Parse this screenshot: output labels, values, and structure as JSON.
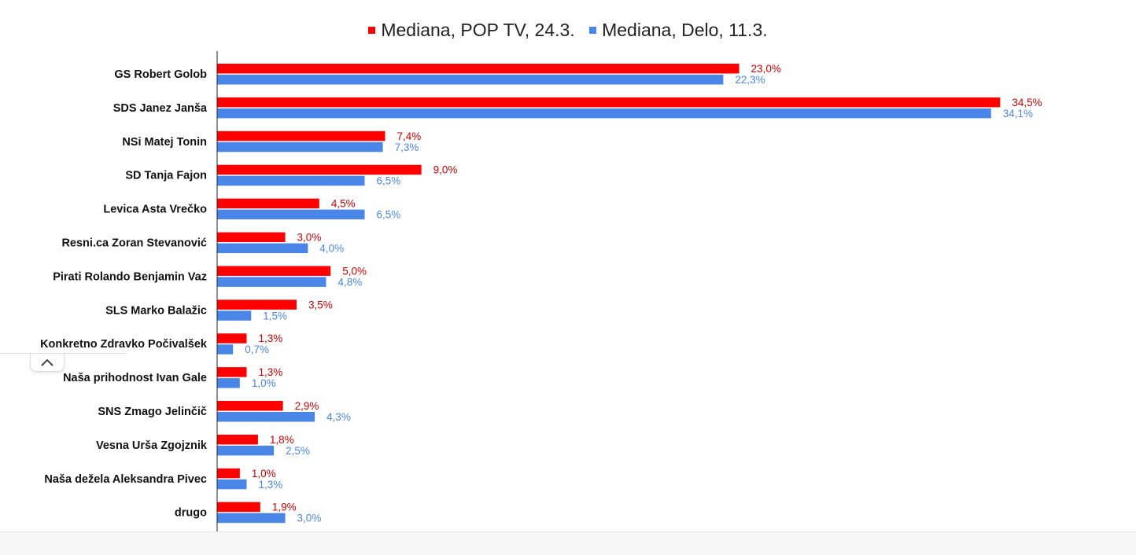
{
  "legend": [
    {
      "label": "Mediana, POP TV, 24.3.",
      "color": "#ff0000"
    },
    {
      "label": "Mediana, Delo, 11.3.",
      "color": "#4a86e8"
    }
  ],
  "chart_data": {
    "type": "bar",
    "orientation": "horizontal",
    "categories": [
      "GS Robert Golob",
      "SDS Janez Janša",
      "NSi Matej Tonin",
      "SD Tanja Fajon",
      "Levica  Asta Vrečko",
      "Resni.ca Zoran Stevanović",
      "Pirati Rolando Benjamin Vaz",
      "SLS Marko Balažic",
      "Konkretno Zdravko Počivalšek",
      "Naša prihodnost Ivan Gale",
      "SNS Zmago Jelinčič",
      "Vesna Urša Zgojznik",
      "Naša dežela Aleksandra Pivec",
      "drugo"
    ],
    "series": [
      {
        "name": "Mediana, POP TV, 24.3.",
        "color": "#ff0000",
        "label_color": "#cc0000",
        "values": [
          23.0,
          34.5,
          7.4,
          9.0,
          4.5,
          3.0,
          5.0,
          3.5,
          1.3,
          1.3,
          2.9,
          1.8,
          1.0,
          1.9
        ],
        "labels": [
          "23,0%",
          "34,5%",
          "7,4%",
          "9,0%",
          "4,5%",
          "3,0%",
          "5,0%",
          "3,5%",
          "1,3%",
          "1,3%",
          "2,9%",
          "1,8%",
          "1,0%",
          "1,9%"
        ]
      },
      {
        "name": "Mediana, Delo, 11.3.",
        "color": "#4a86e8",
        "label_color": "#4a86e8",
        "values": [
          22.3,
          34.1,
          7.3,
          6.5,
          6.5,
          4.0,
          4.8,
          1.5,
          0.7,
          1.0,
          4.3,
          2.5,
          1.3,
          3.0
        ],
        "labels": [
          "22,3%",
          "34,1%",
          "7,3%",
          "6,5%",
          "6,5%",
          "4,0%",
          "4,8%",
          "1,5%",
          "0,7%",
          "1,0%",
          "4,3%",
          "2,5%",
          "1,3%",
          "3,0%"
        ]
      }
    ],
    "xlim": [
      0,
      35
    ],
    "legend_position": "top-center",
    "grid": false
  }
}
